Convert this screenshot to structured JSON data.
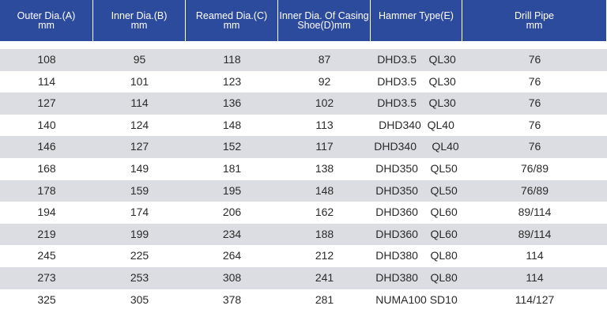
{
  "table": {
    "headers": [
      [
        "Outer Dia.(A)",
        "mm"
      ],
      [
        "Inner Dia.(B)",
        "mm"
      ],
      [
        "Reamed Dia.(C)",
        "mm"
      ],
      [
        "Inner Dia. Of Casing",
        "Shoe(D)mm"
      ],
      [
        "Hammer Type(E)"
      ],
      [
        "Drill Pipe",
        "mm"
      ]
    ],
    "rows": [
      [
        "108",
        "95",
        "118",
        "87",
        "DHD3.5    QL30",
        "76"
      ],
      [
        "114",
        "101",
        "123",
        "92",
        "DHD3.5    QL30",
        "76"
      ],
      [
        "127",
        "114",
        "136",
        "102",
        "DHD3.5    QL30",
        "76"
      ],
      [
        "140",
        "124",
        "148",
        "113",
        "DHD340  QL40",
        "76"
      ],
      [
        "146",
        "127",
        "152",
        "117",
        "DHD340     QL40",
        "76"
      ],
      [
        "168",
        "149",
        "181",
        "138",
        "DHD350    QL50",
        "76/89"
      ],
      [
        "178",
        "159",
        "195",
        "148",
        "DHD350    QL50",
        "76/89"
      ],
      [
        "194",
        "174",
        "206",
        "162",
        "DHD360    QL60",
        "89/114"
      ],
      [
        "219",
        "199",
        "234",
        "188",
        "DHD360    QL60",
        "89/114"
      ],
      [
        "245",
        "225",
        "264",
        "212",
        "DHD380    QL80",
        "114"
      ],
      [
        "273",
        "253",
        "308",
        "241",
        "DHD380    QL80",
        "114"
      ],
      [
        "325",
        "305",
        "378",
        "281",
        "NUMA100 SD10",
        "114/127"
      ]
    ]
  }
}
